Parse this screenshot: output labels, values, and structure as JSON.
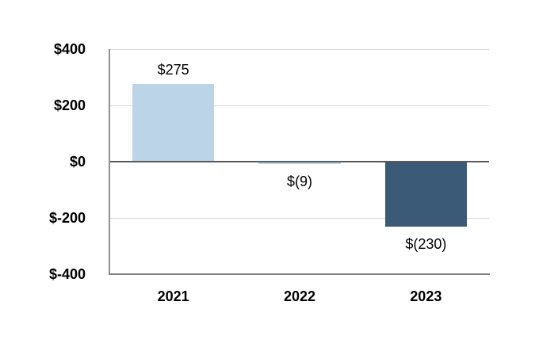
{
  "chart_data": {
    "type": "bar",
    "title": "",
    "xlabel": "",
    "ylabel": "",
    "categories": [
      "2021",
      "2022",
      "2023"
    ],
    "values": [
      275,
      -9,
      -230
    ],
    "data_labels": [
      "$275",
      "$(9)",
      "$(230)"
    ],
    "bar_colors": [
      "#BCD4E8",
      "#BCD4E8",
      "#3A5A78"
    ],
    "ylim": [
      -400,
      400
    ],
    "y_ticks": [
      400,
      200,
      0,
      -200,
      -400
    ],
    "y_tick_labels": [
      "$400",
      "$200",
      "$0",
      "$-200",
      "$-400"
    ],
    "grid": true,
    "legend": "none"
  },
  "style": {
    "background": "#FFFFFF",
    "positive_bar_color": "#BCD4E8",
    "negative_bar_color_2023": "#3A5A78",
    "gridline_color": "#D9D9D9",
    "zero_line_color": "#595959",
    "axis_line_color": "#8C8C8C",
    "text_color": "#000000"
  }
}
